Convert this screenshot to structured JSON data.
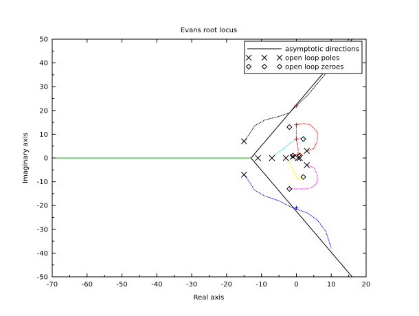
{
  "chart_data": {
    "type": "scatter",
    "title": "Evans root locus",
    "xlabel": "Real axis",
    "ylabel": "Imaginary axis",
    "xlim": [
      -70,
      20
    ],
    "ylim": [
      -50,
      50
    ],
    "grid": false,
    "legend_position": "top-right",
    "xticks": [
      -70,
      -60,
      -50,
      -40,
      -30,
      -20,
      -10,
      0,
      10,
      20
    ],
    "yticks": [
      -50,
      -40,
      -30,
      -20,
      -10,
      0,
      10,
      20,
      30,
      40,
      50
    ],
    "legend": [
      {
        "label": "asymptotic directions",
        "marker": "line"
      },
      {
        "label": "open loop poles",
        "marker": "x"
      },
      {
        "label": "open loop zeroes",
        "marker": "diamond"
      }
    ],
    "asymptote_center": [
      -13,
      0
    ],
    "asymptotes": [
      {
        "name": "asymptote-up",
        "points": [
          [
            -13,
            0
          ],
          [
            16,
            50
          ]
        ]
      },
      {
        "name": "asymptote-down",
        "points": [
          [
            -13,
            0
          ],
          [
            16,
            -50
          ]
        ]
      }
    ],
    "open_loop_poles": [
      [
        -15,
        7
      ],
      [
        -15,
        -7
      ],
      [
        -11,
        0
      ],
      [
        -7,
        0
      ],
      [
        -3,
        0
      ],
      [
        -1,
        0.5
      ],
      [
        0.5,
        0
      ],
      [
        1,
        0
      ],
      [
        3,
        3
      ],
      [
        3,
        -3
      ]
    ],
    "open_loop_zeroes": [
      [
        -2,
        13
      ],
      [
        -2,
        -13
      ],
      [
        2,
        8
      ],
      [
        2,
        -8
      ],
      [
        -1,
        1
      ],
      [
        1,
        1
      ]
    ],
    "branches": [
      {
        "color": "#00b000",
        "points": [
          [
            -70,
            0
          ],
          [
            -60,
            0
          ],
          [
            -40,
            0
          ],
          [
            -20,
            0
          ],
          [
            -13,
            0
          ]
        ]
      },
      {
        "color": "#000000",
        "points": [
          [
            -15,
            7
          ],
          [
            -13.5,
            10
          ],
          [
            -12,
            13.5
          ],
          [
            -9,
            16
          ],
          [
            -5,
            17.5
          ],
          [
            -2,
            19
          ],
          [
            0,
            22
          ],
          [
            3,
            26
          ],
          [
            7,
            33
          ],
          [
            11,
            40
          ],
          [
            15,
            50
          ]
        ]
      },
      {
        "color": "#0000ff",
        "points": [
          [
            -15,
            -7
          ],
          [
            -13.5,
            -10
          ],
          [
            -12,
            -13.5
          ],
          [
            -9,
            -16
          ],
          [
            -5,
            -18
          ],
          [
            -1,
            -21
          ],
          [
            3,
            -23
          ],
          [
            6,
            -26
          ],
          [
            8.5,
            -31
          ],
          [
            10,
            -38
          ]
        ]
      },
      {
        "color": "#ff0000",
        "points": [
          [
            0.5,
            1.5
          ],
          [
            0.5,
            4
          ],
          [
            0,
            8
          ],
          [
            0,
            14
          ],
          [
            2,
            14.5
          ],
          [
            4,
            14
          ],
          [
            6,
            11
          ],
          [
            6,
            7
          ],
          [
            5,
            4
          ],
          [
            3,
            3
          ]
        ]
      },
      {
        "color": "#ff00ff",
        "points": [
          [
            3,
            -3
          ],
          [
            5,
            -4
          ],
          [
            6,
            -7
          ],
          [
            6,
            -10
          ],
          [
            5,
            -12
          ],
          [
            3,
            -13
          ],
          [
            1,
            -13
          ],
          [
            -1,
            -13
          ],
          [
            -2,
            -13
          ]
        ]
      },
      {
        "color": "#00e0e0",
        "points": [
          [
            -7,
            0
          ],
          [
            -6,
            1.5
          ],
          [
            -4,
            3.5
          ],
          [
            -2,
            6
          ],
          [
            0,
            8
          ],
          [
            2,
            8.5
          ],
          [
            2.5,
            8
          ]
        ]
      },
      {
        "color": "#f0f000",
        "points": [
          [
            -3,
            0
          ],
          [
            -2,
            -2
          ],
          [
            -1,
            -5
          ],
          [
            0,
            -8
          ],
          [
            1,
            -9
          ],
          [
            2,
            -8
          ]
        ]
      },
      {
        "color": "#ff0000",
        "points": [
          [
            -1,
            0.5
          ],
          [
            -0.5,
            1
          ],
          [
            -1,
            1
          ]
        ]
      }
    ],
    "crosses": [
      {
        "color": "#ff0000",
        "point": [
          0,
          22
        ]
      },
      {
        "color": "#ff0000",
        "point": [
          0,
          14
        ]
      },
      {
        "color": "#ff0000",
        "point": [
          0,
          8
        ]
      },
      {
        "color": "#ff0000",
        "point": [
          0.5,
          1.5
        ]
      },
      {
        "color": "#0000ff",
        "point": [
          0,
          -21
        ]
      }
    ]
  }
}
